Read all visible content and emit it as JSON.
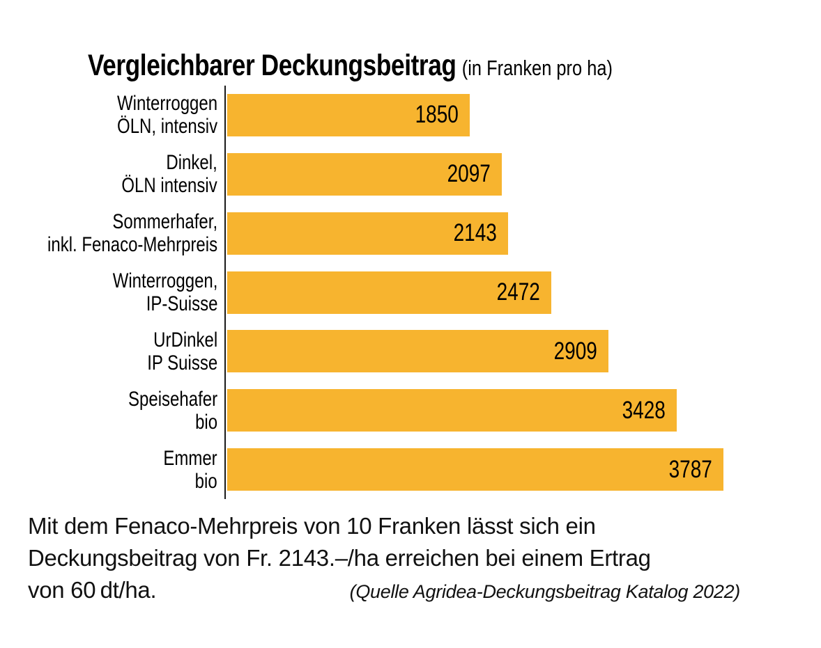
{
  "title": {
    "main": "Vergleichbarer Deckungsbeitrag",
    "unit": "(in Franken pro ha)"
  },
  "chart_data": {
    "type": "bar",
    "orientation": "horizontal",
    "title": "Vergleichbarer Deckungsbeitrag",
    "subtitle": "(in Franken pro ha)",
    "unit": "Franken pro ha",
    "categories": [
      "Winterroggen ÖLN, intensiv",
      "Dinkel, ÖLN intensiv",
      "Sommerhafer, inkl. Fenaco-Mehrpreis",
      "Winterroggen, IP-Suisse",
      "UrDinkel IP Suisse",
      "Speisehafer bio",
      "Emmer bio"
    ],
    "values": [
      1850,
      2097,
      2143,
      2472,
      2909,
      3428,
      3787
    ],
    "bars": [
      {
        "label_line1": "Winterroggen",
        "label_line2": "ÖLN, intensiv",
        "value": 1850
      },
      {
        "label_line1": "Dinkel,",
        "label_line2": "ÖLN intensiv",
        "value": 2097
      },
      {
        "label_line1": "Sommerhafer,",
        "label_line2": "inkl. Fenaco-Mehrpreis",
        "value": 2143
      },
      {
        "label_line1": "Winterroggen,",
        "label_line2": "IP-Suisse",
        "value": 2472
      },
      {
        "label_line1": "UrDinkel",
        "label_line2": "IP Suisse",
        "value": 2909
      },
      {
        "label_line1": "Speisehafer",
        "label_line2": "bio",
        "value": 3428
      },
      {
        "label_line1": "Emmer",
        "label_line2": "bio",
        "value": 3787
      }
    ],
    "xlim": [
      0,
      3787
    ],
    "value_labels_inside_bars": true,
    "grid": false,
    "legend": false,
    "bar_color": "#F7B42F",
    "axis_color": "#1a1a1a",
    "text_color": "#000000"
  },
  "footer": {
    "line1": "Mit dem Fenaco-Mehrpreis von 10 Franken lässt sich ein",
    "line2": "Deckungsbeitrag von Fr. 2143.–/ha erreichen bei einem Ertrag",
    "line3": "von 60 dt/ha.",
    "source": "(Quelle Agridea-Deckungsbeitrag Katalog 2022)"
  }
}
